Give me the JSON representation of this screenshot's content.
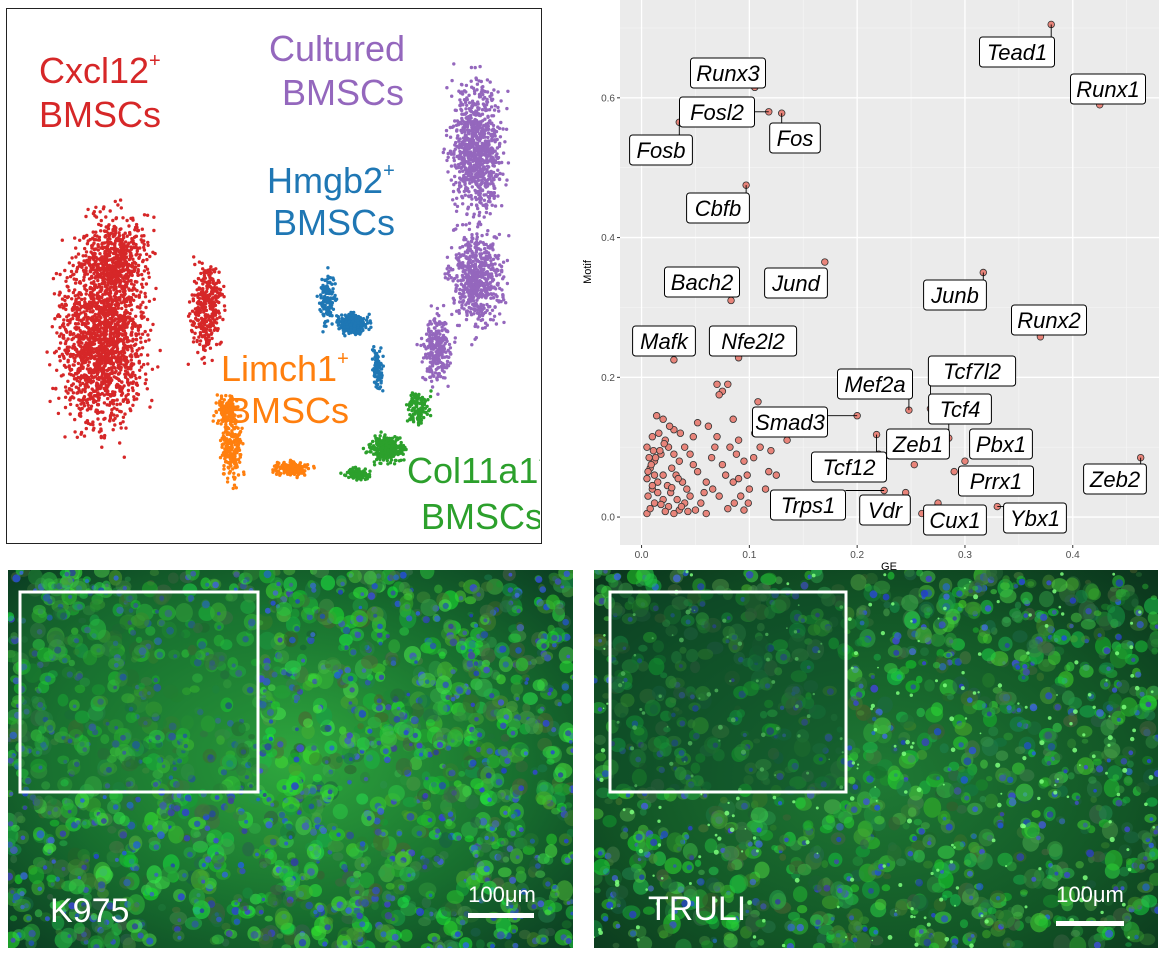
{
  "umap": {
    "clusters": [
      {
        "line1": "Cxcl12",
        "sup": "+",
        "line2": "BMSCs",
        "color": "#d62728"
      },
      {
        "line1": "Cultured",
        "sup": "",
        "line2": "BMSCs",
        "color": "#9467bd"
      },
      {
        "line1": "Hmgb2",
        "sup": "+",
        "line2": "BMSCs",
        "color": "#1f77b4"
      },
      {
        "line1": "Limch1",
        "sup": "+",
        "line2": "BMSCs",
        "color": "#ff7f0e"
      },
      {
        "line1": "Col11a1",
        "sup": "+",
        "line2": "BMSCs",
        "color": "#2ca02c"
      }
    ]
  },
  "chart_data": {
    "type": "scatter",
    "xlabel": "GE",
    "ylabel": "Motif",
    "xlim": [
      -0.02,
      0.48
    ],
    "ylim": [
      -0.04,
      0.74
    ],
    "xticks": [
      "0.0",
      "0.1",
      "0.2",
      "0.3",
      "0.4"
    ],
    "yticks": [
      "0.0",
      "0.2",
      "0.4",
      "0.6"
    ],
    "grid": true,
    "point_color": "#e8847a",
    "labeled_points": [
      {
        "gene": "Tead1",
        "x": 0.38,
        "y": 0.705
      },
      {
        "gene": "Runx1",
        "x": 0.425,
        "y": 0.59
      },
      {
        "gene": "Runx3",
        "x": 0.105,
        "y": 0.615
      },
      {
        "gene": "Fosl2",
        "x": 0.118,
        "y": 0.58
      },
      {
        "gene": "Fos",
        "x": 0.13,
        "y": 0.578
      },
      {
        "gene": "Fosb",
        "x": 0.035,
        "y": 0.565
      },
      {
        "gene": "Cbfb",
        "x": 0.097,
        "y": 0.475
      },
      {
        "gene": "Jund",
        "x": 0.17,
        "y": 0.365
      },
      {
        "gene": "Junb",
        "x": 0.317,
        "y": 0.35
      },
      {
        "gene": "Bach2",
        "x": 0.083,
        "y": 0.31
      },
      {
        "gene": "Runx2",
        "x": 0.37,
        "y": 0.258
      },
      {
        "gene": "Mafk",
        "x": 0.03,
        "y": 0.225
      },
      {
        "gene": "Nfe2l2",
        "x": 0.09,
        "y": 0.228
      },
      {
        "gene": "Mef2a",
        "x": 0.248,
        "y": 0.153
      },
      {
        "gene": "Tcf7l2",
        "x": 0.268,
        "y": 0.155
      },
      {
        "gene": "Smad3",
        "x": 0.2,
        "y": 0.145
      },
      {
        "gene": "Tcf4",
        "x": 0.285,
        "y": 0.113
      },
      {
        "gene": "Zeb1",
        "x": 0.253,
        "y": 0.075
      },
      {
        "gene": "Pbx1",
        "x": 0.3,
        "y": 0.08
      },
      {
        "gene": "Tcf12",
        "x": 0.218,
        "y": 0.118
      },
      {
        "gene": "Prrx1",
        "x": 0.3,
        "y": 0.048
      },
      {
        "gene": "Zeb2",
        "x": 0.463,
        "y": 0.085
      },
      {
        "gene": "Trps1",
        "x": 0.225,
        "y": 0.038
      },
      {
        "gene": "Vdr",
        "x": 0.245,
        "y": 0.035
      },
      {
        "gene": "Cux1",
        "x": 0.26,
        "y": 0.005
      },
      {
        "gene": "Ybx1",
        "x": 0.33,
        "y": 0.015
      }
    ],
    "unlabeled_points": [
      [
        0.005,
        0.005
      ],
      [
        0.008,
        0.012
      ],
      [
        0.012,
        0.02
      ],
      [
        0.006,
        0.03
      ],
      [
        0.01,
        0.04
      ],
      [
        0.015,
        0.05
      ],
      [
        0.02,
        0.06
      ],
      [
        0.008,
        0.07
      ],
      [
        0.012,
        0.08
      ],
      [
        0.018,
        0.09
      ],
      [
        0.005,
        0.1
      ],
      [
        0.01,
        0.115
      ],
      [
        0.016,
        0.12
      ],
      [
        0.022,
        0.11
      ],
      [
        0.025,
        0.1
      ],
      [
        0.03,
        0.09
      ],
      [
        0.035,
        0.08
      ],
      [
        0.028,
        0.07
      ],
      [
        0.032,
        0.06
      ],
      [
        0.038,
        0.05
      ],
      [
        0.042,
        0.04
      ],
      [
        0.045,
        0.03
      ],
      [
        0.04,
        0.02
      ],
      [
        0.035,
        0.01
      ],
      [
        0.03,
        0.005
      ],
      [
        0.025,
        0.015
      ],
      [
        0.02,
        0.025
      ],
      [
        0.015,
        0.035
      ],
      [
        0.01,
        0.045
      ],
      [
        0.005,
        0.055
      ],
      [
        0.006,
        0.065
      ],
      [
        0.009,
        0.075
      ],
      [
        0.013,
        0.085
      ],
      [
        0.017,
        0.095
      ],
      [
        0.021,
        0.105
      ],
      [
        0.024,
        0.045
      ],
      [
        0.027,
        0.035
      ],
      [
        0.033,
        0.025
      ],
      [
        0.037,
        0.015
      ],
      [
        0.043,
        0.008
      ],
      [
        0.05,
        0.01
      ],
      [
        0.055,
        0.02
      ],
      [
        0.058,
        0.035
      ],
      [
        0.06,
        0.05
      ],
      [
        0.052,
        0.065
      ],
      [
        0.048,
        0.075
      ],
      [
        0.045,
        0.09
      ],
      [
        0.04,
        0.1
      ],
      [
        0.036,
        0.12
      ],
      [
        0.03,
        0.125
      ],
      [
        0.026,
        0.13
      ],
      [
        0.02,
        0.14
      ],
      [
        0.014,
        0.145
      ],
      [
        0.012,
        0.06
      ],
      [
        0.018,
        0.018
      ],
      [
        0.022,
        0.008
      ],
      [
        0.028,
        0.042
      ],
      [
        0.034,
        0.055
      ],
      [
        0.011,
        0.095
      ],
      [
        0.007,
        0.085
      ],
      [
        0.07,
        0.19
      ],
      [
        0.075,
        0.18
      ],
      [
        0.08,
        0.19
      ],
      [
        0.072,
        0.175
      ],
      [
        0.068,
        0.1
      ],
      [
        0.065,
        0.085
      ],
      [
        0.075,
        0.075
      ],
      [
        0.078,
        0.06
      ],
      [
        0.085,
        0.05
      ],
      [
        0.088,
        0.09
      ],
      [
        0.09,
        0.11
      ],
      [
        0.095,
        0.08
      ],
      [
        0.098,
        0.06
      ],
      [
        0.1,
        0.04
      ],
      [
        0.092,
        0.03
      ],
      [
        0.086,
        0.02
      ],
      [
        0.08,
        0.012
      ],
      [
        0.104,
        0.085
      ],
      [
        0.11,
        0.1
      ],
      [
        0.105,
        0.12
      ],
      [
        0.118,
        0.065
      ],
      [
        0.125,
        0.06
      ],
      [
        0.128,
        0.03
      ],
      [
        0.135,
        0.11
      ],
      [
        0.14,
        0.13
      ],
      [
        0.095,
        0.01
      ],
      [
        0.06,
        0.005
      ],
      [
        0.066,
        0.04
      ],
      [
        0.072,
        0.03
      ],
      [
        0.082,
        0.1
      ],
      [
        0.09,
        0.055
      ],
      [
        0.099,
        0.02
      ],
      [
        0.108,
        0.165
      ],
      [
        0.115,
        0.04
      ],
      [
        0.12,
        0.095
      ],
      [
        0.085,
        0.14
      ],
      [
        0.062,
        0.13
      ],
      [
        0.07,
        0.115
      ],
      [
        0.048,
        0.115
      ],
      [
        0.052,
        0.135
      ],
      [
        0.165,
        0.12
      ],
      [
        0.172,
        0.08
      ],
      [
        0.185,
        0.06
      ],
      [
        0.22,
        0.09
      ],
      [
        0.29,
        0.065
      ],
      [
        0.275,
        0.02
      ]
    ]
  },
  "micrographs": [
    {
      "label": "K975",
      "scale": "100μm"
    },
    {
      "label": "TRULI",
      "scale": "100μm"
    }
  ]
}
